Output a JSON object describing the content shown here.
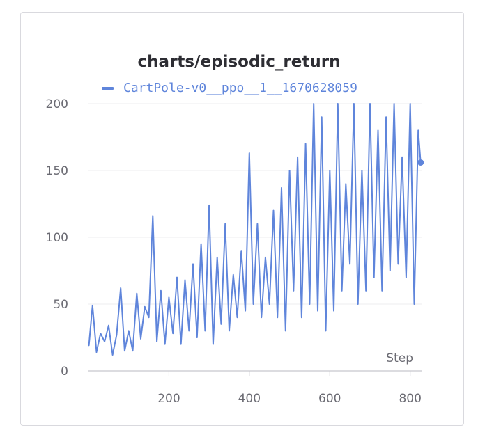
{
  "chart_data": {
    "type": "line",
    "title": "charts/episodic_return",
    "xlabel": "Step",
    "ylabel": "",
    "xlim": [
      0,
      830
    ],
    "ylim": [
      0,
      200
    ],
    "x_ticks": [
      "200",
      "400",
      "600",
      "800"
    ],
    "y_ticks": [
      "0",
      "50",
      "100",
      "150",
      "200"
    ],
    "grid": "horizontal",
    "legend_position": "top",
    "series": [
      {
        "name": "CartPole-v0__ppo__1__1670628059",
        "color": "#5f85db",
        "x": [
          1,
          10,
          20,
          30,
          40,
          50,
          60,
          70,
          80,
          90,
          100,
          110,
          120,
          130,
          140,
          150,
          160,
          170,
          180,
          190,
          200,
          210,
          220,
          230,
          240,
          250,
          260,
          270,
          280,
          290,
          300,
          310,
          320,
          330,
          340,
          350,
          360,
          370,
          380,
          390,
          400,
          410,
          420,
          430,
          440,
          450,
          460,
          470,
          480,
          490,
          500,
          510,
          520,
          530,
          540,
          550,
          560,
          570,
          580,
          590,
          600,
          610,
          620,
          630,
          640,
          650,
          660,
          670,
          680,
          690,
          700,
          710,
          720,
          730,
          740,
          750,
          760,
          770,
          780,
          790,
          800,
          810,
          820,
          826
        ],
        "y": [
          19,
          49,
          14,
          28,
          22,
          34,
          12,
          27,
          62,
          15,
          30,
          15,
          58,
          24,
          48,
          40,
          116,
          22,
          60,
          20,
          55,
          28,
          70,
          20,
          68,
          30,
          80,
          25,
          95,
          30,
          124,
          20,
          85,
          35,
          110,
          30,
          72,
          40,
          90,
          45,
          163,
          50,
          110,
          40,
          85,
          50,
          120,
          40,
          137,
          30,
          150,
          60,
          160,
          40,
          170,
          50,
          200,
          45,
          190,
          30,
          150,
          45,
          200,
          60,
          140,
          80,
          200,
          50,
          150,
          60,
          200,
          70,
          180,
          60,
          190,
          75,
          200,
          80,
          160,
          70,
          200,
          50,
          180,
          156
        ]
      }
    ]
  }
}
